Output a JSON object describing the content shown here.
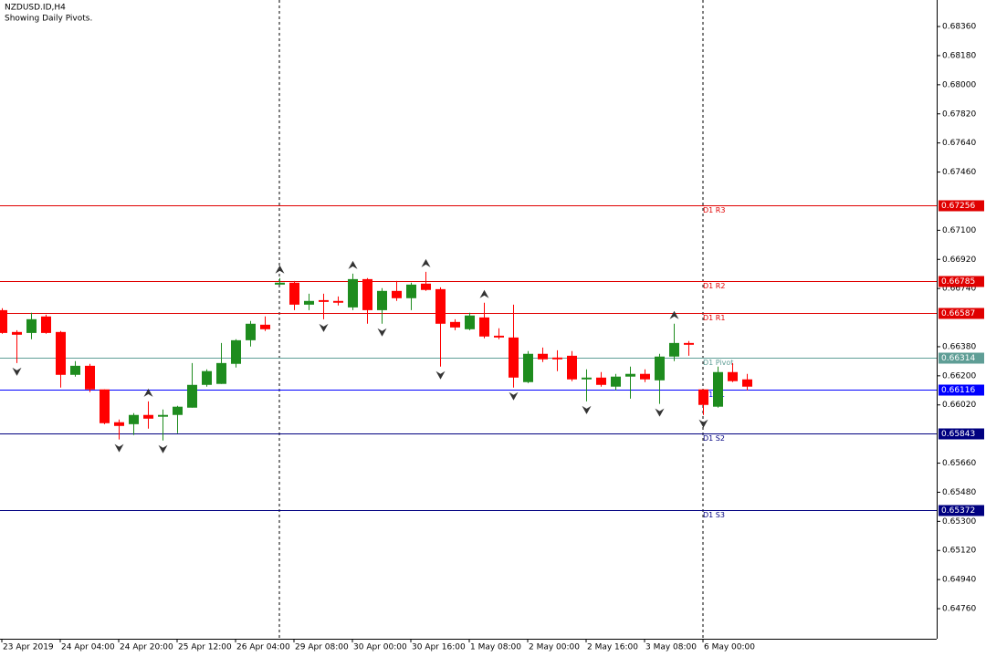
{
  "chart_data": {
    "type": "candlestick",
    "title": "NZDUSD.ID,H4",
    "subtitle": "Showing Daily Pivots.",
    "categories": [
      "23 Apr 2019",
      null,
      null,
      null,
      "24 Apr 04:00",
      null,
      null,
      null,
      "24 Apr 20:00",
      null,
      null,
      null,
      "25 Apr 12:00",
      null,
      null,
      null,
      "26 Apr 04:00",
      null,
      null,
      null,
      "29 Apr 08:00",
      null,
      null,
      null,
      "30 Apr 00:00",
      null,
      null,
      null,
      "30 Apr 16:00",
      null,
      null,
      null,
      "1 May 08:00",
      null,
      null,
      null,
      "2 May 00:00",
      null,
      null,
      null,
      "2 May 16:00",
      null,
      null,
      null,
      "3 May 08:00",
      null,
      null,
      null,
      "6 May 00:00",
      null,
      null,
      null
    ],
    "open": [
      0.66606,
      0.66471,
      0.66465,
      0.66567,
      0.66471,
      0.66206,
      0.66262,
      0.66116,
      0.65913,
      0.65901,
      0.65958,
      0.65947,
      0.65958,
      0.66003,
      0.66144,
      0.6615,
      0.66274,
      0.6642,
      0.66516,
      0.66764,
      0.66776,
      0.6664,
      0.66668,
      0.66663,
      0.66623,
      0.66798,
      0.66606,
      0.66725,
      0.6668,
      0.6677,
      0.66736,
      0.66533,
      0.66488,
      0.66561,
      0.66448,
      0.66437,
      0.66161,
      0.66336,
      0.66313,
      0.66324,
      0.66178,
      0.66189,
      0.66133,
      0.66195,
      0.66212,
      0.66172,
      0.66319,
      0.66403,
      0.66116,
      0.66009,
      0.66223,
      0.66178
    ],
    "high": [
      0.66618,
      0.66482,
      0.6659,
      0.66578,
      0.66477,
      0.66291,
      0.66274,
      0.66116,
      0.6593,
      0.65969,
      0.66042,
      0.65992,
      0.66014,
      0.66279,
      0.6624,
      0.66403,
      0.66426,
      0.66539,
      0.66567,
      0.66804,
      0.66787,
      0.66708,
      0.66708,
      0.66691,
      0.66832,
      0.66804,
      0.66742,
      0.66787,
      0.66776,
      0.66843,
      0.66747,
      0.6655,
      0.6659,
      0.66652,
      0.66494,
      0.6664,
      0.66353,
      0.66375,
      0.66358,
      0.66353,
      0.6624,
      0.66223,
      0.66212,
      0.66257,
      0.6624,
      0.66336,
      0.66522,
      0.66415,
      0.66116,
      0.66257,
      0.66279,
      0.66212
    ],
    "low": [
      0.6646,
      0.66279,
      0.66426,
      0.6646,
      0.66127,
      0.66195,
      0.66099,
      0.65901,
      0.65806,
      0.65834,
      0.65873,
      0.658,
      0.65845,
      0.66003,
      0.66133,
      0.6615,
      0.66251,
      0.66381,
      0.66477,
      0.66764,
      0.66606,
      0.66606,
      0.6655,
      0.66635,
      0.66606,
      0.66522,
      0.66522,
      0.66663,
      0.66606,
      0.66725,
      0.66257,
      0.66482,
      0.66482,
      0.66432,
      0.66426,
      0.66127,
      0.66155,
      0.66285,
      0.66229,
      0.66167,
      0.66042,
      0.66133,
      0.6611,
      0.66059,
      0.66161,
      0.66026,
      0.66291,
      0.66324,
      0.65958,
      0.66003,
      0.66161,
      0.6611
    ],
    "close": [
      0.66465,
      0.66454,
      0.6655,
      0.66465,
      0.66206,
      0.66262,
      0.66116,
      0.65907,
      0.6589,
      0.65958,
      0.65935,
      0.65958,
      0.66009,
      0.66144,
      0.66229,
      0.66279,
      0.6642,
      0.66522,
      0.66488,
      0.66776,
      0.6664,
      0.66663,
      0.66657,
      0.66652,
      0.66798,
      0.66606,
      0.66725,
      0.6668,
      0.66764,
      0.66731,
      0.66522,
      0.66499,
      0.66573,
      0.66443,
      0.66437,
      0.66189,
      0.66336,
      0.66302,
      0.66302,
      0.66178,
      0.66189,
      0.66144,
      0.66195,
      0.66212,
      0.66178,
      0.66319,
      0.66403,
      0.66392,
      0.6602,
      0.66223,
      0.66167,
      0.66133
    ],
    "up_color": "#1e8c1e",
    "down_color": "#ff0000",
    "fractals_up": [
      null,
      null,
      null,
      null,
      null,
      null,
      null,
      null,
      null,
      null,
      0.66042,
      null,
      null,
      null,
      null,
      null,
      null,
      null,
      null,
      0.66804,
      null,
      null,
      null,
      null,
      0.66832,
      null,
      null,
      null,
      null,
      0.66843,
      null,
      null,
      null,
      0.66652,
      null,
      null,
      null,
      null,
      null,
      null,
      null,
      null,
      null,
      null,
      null,
      null,
      0.66522,
      null,
      null,
      null,
      null,
      null
    ],
    "fractals_down": [
      null,
      0.66279,
      null,
      null,
      null,
      null,
      null,
      null,
      0.65806,
      null,
      null,
      0.658,
      null,
      null,
      null,
      null,
      null,
      null,
      null,
      null,
      null,
      null,
      0.6655,
      null,
      null,
      null,
      0.66522,
      null,
      null,
      null,
      0.66257,
      null,
      null,
      null,
      null,
      0.66127,
      null,
      null,
      null,
      null,
      0.66042,
      null,
      null,
      null,
      null,
      0.66026,
      null,
      null,
      0.65958,
      null,
      null,
      null
    ],
    "fractal_color": "#333333",
    "levels": [
      {
        "name": "D1 R3",
        "value": 0.67256,
        "color": "#e00000"
      },
      {
        "name": "D1 R2",
        "value": 0.66785,
        "color": "#e00000"
      },
      {
        "name": "D1 R1",
        "value": 0.66587,
        "color": "#e00000"
      },
      {
        "name": "D1 Pivot",
        "value": 0.66314,
        "color": "#5f9e96"
      },
      {
        "name": "D1 S1",
        "value": 0.66116,
        "color": "#0000ff"
      },
      {
        "name": "D1 S2",
        "value": 0.65843,
        "color": "#000080"
      },
      {
        "name": "D1 S3",
        "value": 0.65372,
        "color": "#000080"
      }
    ],
    "ylim": [
      0.64574,
      0.68524
    ],
    "yticks": [
      {
        "value": 0.6836,
        "label": "0.68360"
      },
      {
        "value": 0.6818,
        "label": "0.68180"
      },
      {
        "value": 0.68,
        "label": "0.68000"
      },
      {
        "value": 0.6782,
        "label": "0.67820"
      },
      {
        "value": 0.6764,
        "label": "0.67640"
      },
      {
        "value": 0.6746,
        "label": "0.67460"
      },
      {
        "value": 0.671,
        "label": "0.67100"
      },
      {
        "value": 0.6692,
        "label": "0.66920"
      },
      {
        "value": 0.6674,
        "label": "0.66740"
      },
      {
        "value": 0.6638,
        "label": "0.66380"
      },
      {
        "value": 0.662,
        "label": "0.66200"
      },
      {
        "value": 0.6602,
        "label": "0.66020"
      },
      {
        "value": 0.6566,
        "label": "0.65660"
      },
      {
        "value": 0.6548,
        "label": "0.65480"
      },
      {
        "value": 0.653,
        "label": "0.65300"
      },
      {
        "value": 0.6512,
        "label": "0.65120"
      },
      {
        "value": 0.6494,
        "label": "0.64940"
      },
      {
        "value": 0.6476,
        "label": "0.64760"
      }
    ]
  }
}
